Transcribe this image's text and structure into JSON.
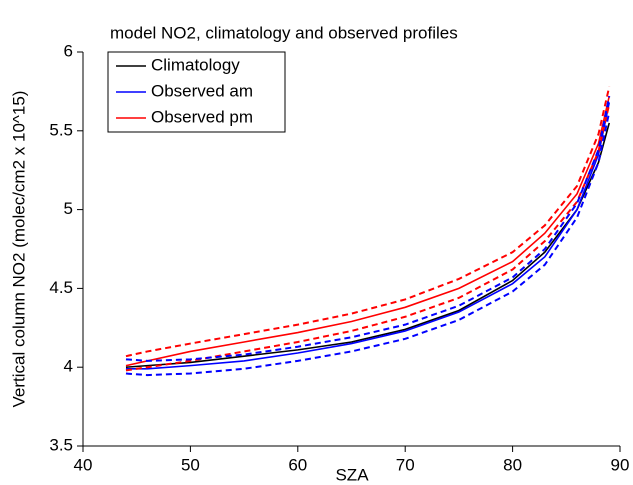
{
  "chart_data": {
    "type": "line",
    "title": "model NO2, climatology and observed profiles",
    "x_label": "SZA",
    "y_label": "Vertical column NO2 (molec/cm2 x 10^15)",
    "x": [
      44,
      46,
      50,
      55,
      60,
      65,
      70,
      75,
      80,
      83,
      86,
      88,
      89
    ],
    "series": [
      {
        "name": "Climatology",
        "color": "#000000",
        "values": [
          4.0,
          4.01,
          4.03,
          4.07,
          4.11,
          4.16,
          4.24,
          4.36,
          4.55,
          4.73,
          5.0,
          5.3,
          5.55
        ]
      },
      {
        "name": "Observed am",
        "color": "#0000ff",
        "values": [
          3.99,
          3.99,
          4.01,
          4.04,
          4.09,
          4.15,
          4.23,
          4.35,
          4.53,
          4.7,
          5.0,
          5.35,
          5.68
        ]
      },
      {
        "name": "Observed pm",
        "color": "#ff0000",
        "values": [
          4.01,
          4.04,
          4.1,
          4.16,
          4.22,
          4.29,
          4.38,
          4.5,
          4.67,
          4.85,
          5.1,
          5.42,
          5.72
        ]
      },
      {
        "color": "#ff0000",
        "dashed": true,
        "values": [
          4.07,
          4.1,
          4.15,
          4.21,
          4.27,
          4.34,
          4.43,
          4.56,
          4.73,
          4.9,
          5.15,
          5.48,
          5.78
        ]
      },
      {
        "color": "#ff0000",
        "dashed": true,
        "values": [
          3.98,
          4.0,
          4.04,
          4.1,
          4.16,
          4.23,
          4.32,
          4.44,
          4.62,
          4.8,
          5.05,
          5.37,
          5.67
        ]
      },
      {
        "color": "#0000ff",
        "dashed": true,
        "values": [
          4.05,
          4.04,
          4.05,
          4.08,
          4.13,
          4.19,
          4.27,
          4.39,
          4.57,
          4.75,
          5.04,
          5.38,
          5.72
        ]
      },
      {
        "color": "#0000ff",
        "dashed": true,
        "values": [
          3.96,
          3.95,
          3.96,
          3.99,
          4.04,
          4.1,
          4.18,
          4.3,
          4.48,
          4.65,
          4.95,
          5.3,
          5.62
        ]
      }
    ],
    "xlim": [
      40,
      90
    ],
    "xticks": [
      40,
      50,
      60,
      70,
      80,
      90
    ],
    "ylim": [
      3.5,
      6
    ],
    "yticks": [
      3.5,
      4,
      4.5,
      5,
      5.5,
      6
    ],
    "grid": false,
    "legend": "upper left"
  }
}
